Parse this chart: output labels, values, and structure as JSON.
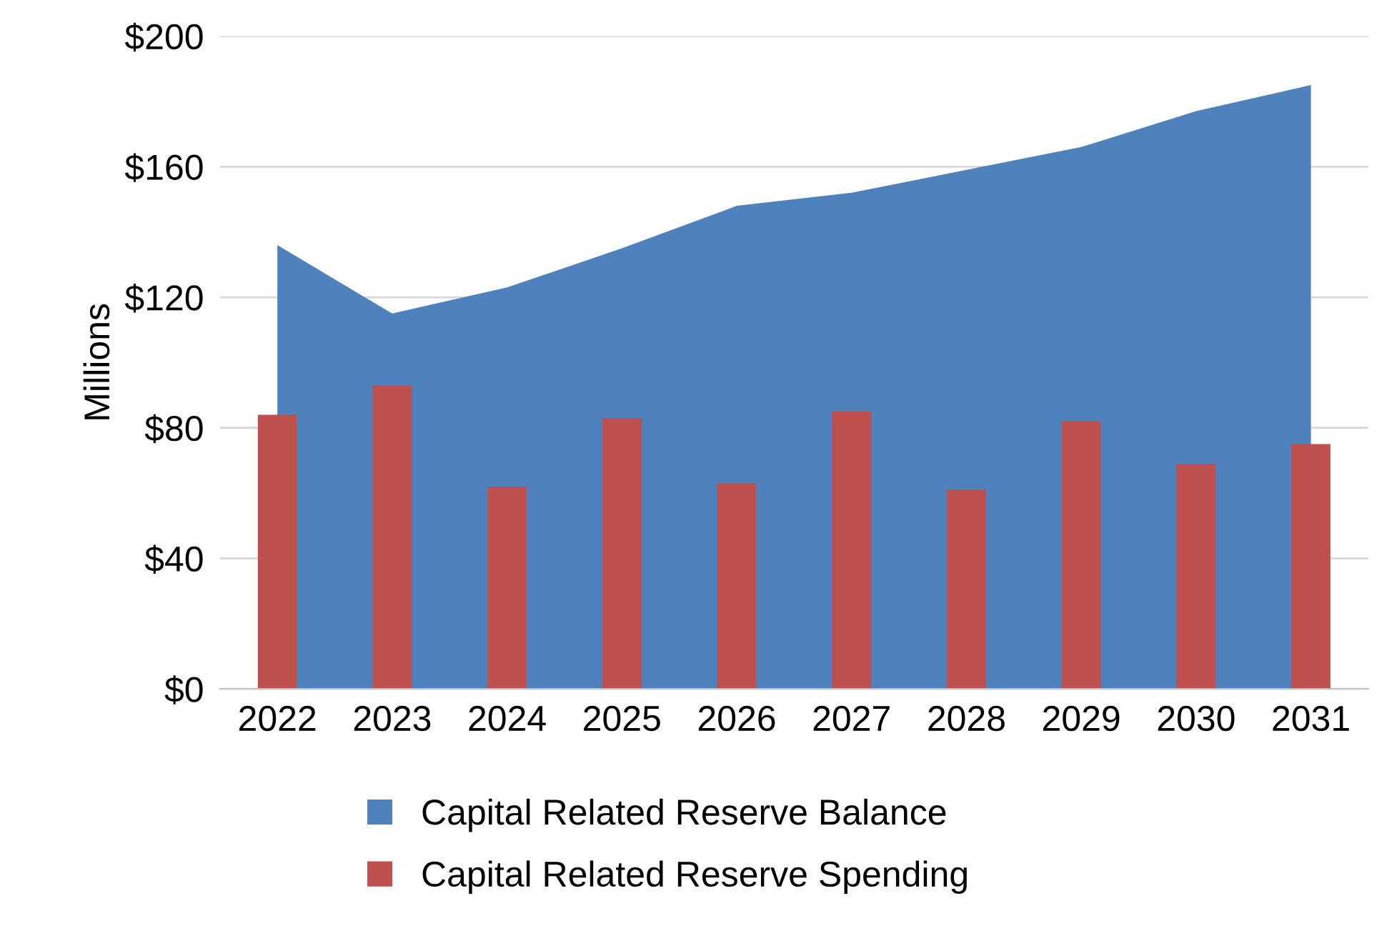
{
  "chart_data": {
    "type": "bar",
    "ylabel": "Millions",
    "categories": [
      "2022",
      "2023",
      "2024",
      "2025",
      "2026",
      "2027",
      "2028",
      "2029",
      "2030",
      "2031"
    ],
    "series": [
      {
        "name": "Capital Related Reserve Balance",
        "type": "area",
        "color": "#4f81bd",
        "values": [
          136,
          115,
          123,
          135,
          148,
          152,
          159,
          166,
          177,
          185
        ]
      },
      {
        "name": "Capital Related Reserve Spending",
        "color": "#c0504d",
        "values": [
          84,
          93,
          62,
          83,
          63,
          85,
          61,
          82,
          69,
          75
        ]
      }
    ],
    "ylim": [
      0,
      200
    ],
    "yticks": [
      {
        "value": 0,
        "label": "$0"
      },
      {
        "value": 40,
        "label": "$40"
      },
      {
        "value": 80,
        "label": "$80"
      },
      {
        "value": 120,
        "label": "$120"
      },
      {
        "value": 160,
        "label": "$160"
      },
      {
        "value": 200,
        "label": "$200"
      }
    ],
    "grid": "y",
    "legend": "bottom"
  }
}
